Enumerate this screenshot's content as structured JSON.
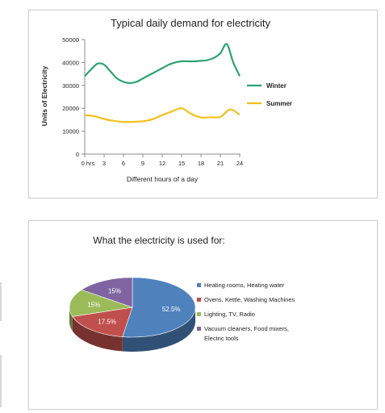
{
  "chart_data": [
    {
      "type": "line",
      "title": "Typical daily demand for electricity",
      "xlabel": "Different hours of a day",
      "ylabel": "Units of Electricity",
      "xlim": [
        0,
        24
      ],
      "ylim": [
        0,
        50000
      ],
      "x_ticks": [
        0,
        3,
        6,
        9,
        12,
        15,
        18,
        21,
        24
      ],
      "x_tick_labels": [
        "0 hrs",
        "3",
        "6",
        "9",
        "12",
        "15",
        "18",
        "21",
        "24"
      ],
      "y_ticks": [
        0,
        10000,
        20000,
        30000,
        40000,
        50000
      ],
      "y_tick_labels": [
        "0",
        "10000",
        "20000",
        "30000",
        "40000",
        "50000"
      ],
      "legend_position": "right",
      "grid": false,
      "series": [
        {
          "name": "Winter",
          "color": "#2ea272",
          "x": [
            0,
            1,
            2,
            3,
            4,
            5,
            6,
            7,
            8,
            9,
            10,
            11,
            12,
            13,
            14,
            15,
            16,
            17,
            18,
            19,
            20,
            21,
            22,
            23,
            24
          ],
          "y": [
            34000,
            37000,
            39500,
            39000,
            36000,
            33000,
            31500,
            31000,
            31500,
            33000,
            34500,
            36000,
            37500,
            39000,
            40000,
            40500,
            40500,
            40500,
            40700,
            41000,
            42000,
            44000,
            48000,
            40000,
            34000
          ]
        },
        {
          "name": "Summer",
          "color": "#f2c01e",
          "x": [
            0,
            1.5,
            3,
            4.5,
            6,
            7.5,
            9,
            10.5,
            12,
            13.5,
            15,
            16.5,
            18,
            19.5,
            21,
            22.5,
            24
          ],
          "y": [
            17000,
            16500,
            15300,
            14500,
            14000,
            14100,
            14300,
            15200,
            17000,
            18600,
            20000,
            17500,
            16000,
            16100,
            16200,
            19500,
            17200
          ]
        }
      ]
    },
    {
      "type": "pie",
      "title": "What the electricity is used for:",
      "legend_position": "right",
      "slices": [
        {
          "label": "Heating rooms, Heating water",
          "value": 52.5,
          "display": "52.5%",
          "color": "#4f81bd"
        },
        {
          "label": "Ovens, Kettle, Washing Machines",
          "value": 17.5,
          "display": "17.5%",
          "color": "#c0504d"
        },
        {
          "label": "Lighting, TV, Radio",
          "value": 15,
          "display": "15%",
          "color": "#9bbb59"
        },
        {
          "label": "Vacuum cleaners, Food mixers, Electric tools",
          "legend_lines": [
            "Vacuum cleaners, Food mixers,",
            "Electric tools"
          ],
          "value": 15,
          "display": "15%",
          "color": "#8064a2"
        }
      ]
    }
  ]
}
